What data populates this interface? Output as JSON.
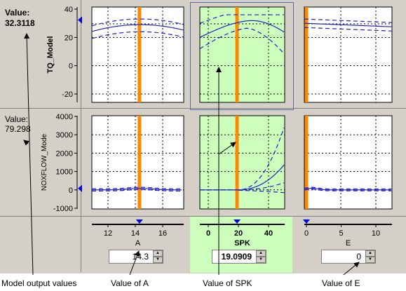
{
  "output_panel": {
    "tq": {
      "caption": "Value:",
      "value": "32.3118"
    },
    "nox": {
      "caption": "Value:",
      "value": "79.298"
    }
  },
  "models": [
    {
      "name": "TQ_Model",
      "ticks": [
        "40",
        "20",
        "0",
        "-20"
      ]
    },
    {
      "name": "NOXFLOW_Mode",
      "ticks": [
        "4000",
        "3000",
        "2000",
        "1000",
        "0",
        "-1000"
      ]
    }
  ],
  "inputs": [
    {
      "name": "A",
      "value": "14.3",
      "ticks": [
        "12",
        "14",
        "16"
      ],
      "highlighted": false
    },
    {
      "name": "SPK",
      "value": "19.0909",
      "ticks": [
        "0",
        "20",
        "40"
      ],
      "highlighted": true
    },
    {
      "name": "E",
      "value": "0",
      "ticks": [
        "0",
        "5",
        "10"
      ],
      "highlighted": false
    }
  ],
  "annotations": {
    "outputs": "Model output values",
    "a": "Value of A",
    "spk": "Value of SPK",
    "e": "Value of E"
  },
  "colors": {
    "panel": "#d4d0c8",
    "highlight": "#ccffbb",
    "curve": "#2222cc",
    "cursor": "#ff8800",
    "marker": "#0000ee"
  }
}
